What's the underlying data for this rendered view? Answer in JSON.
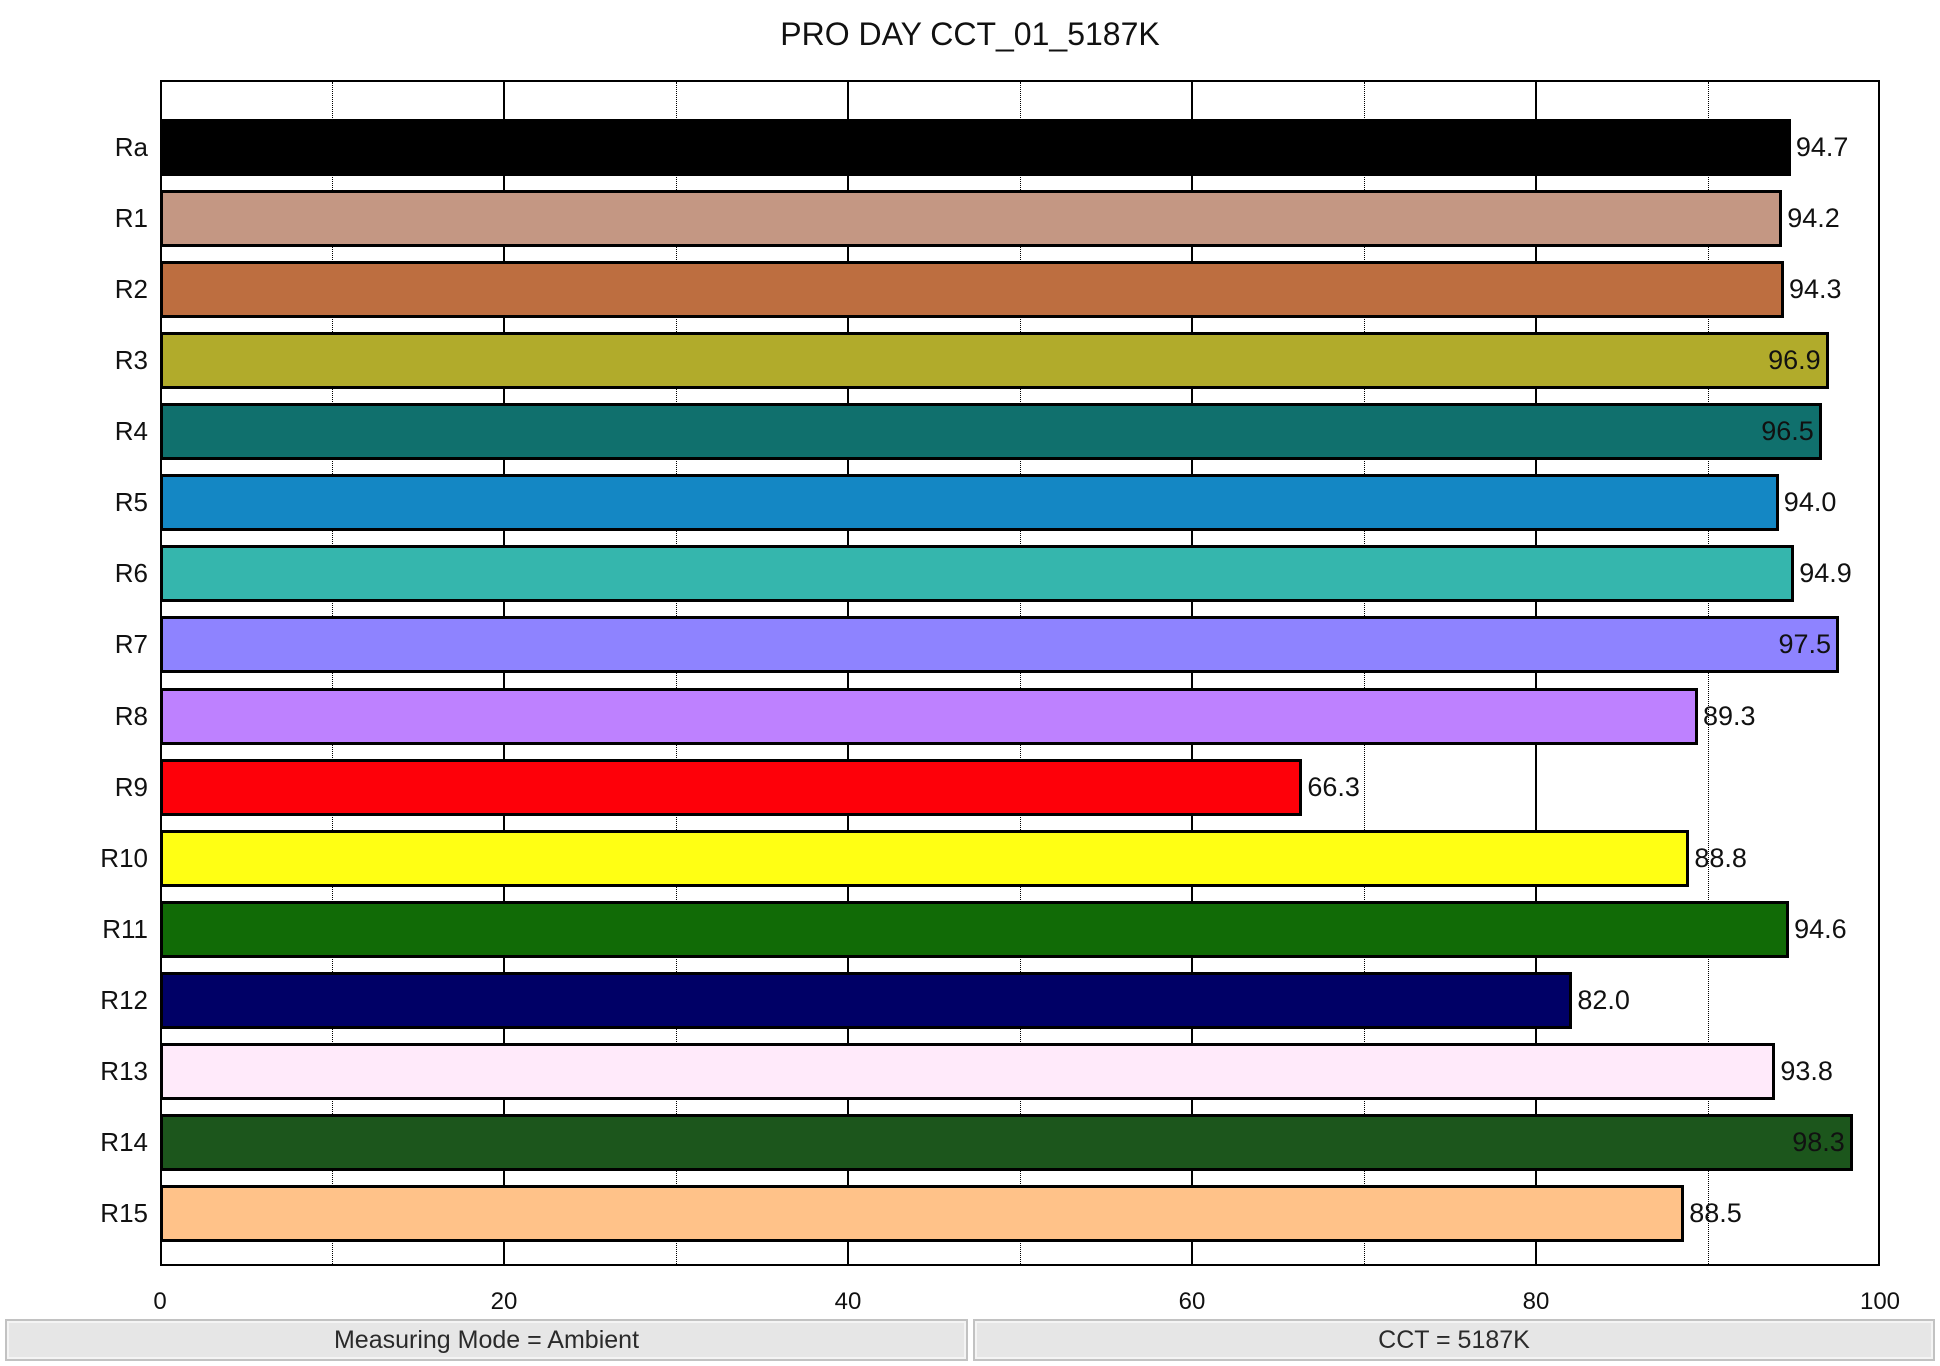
{
  "title": "PRO DAY CCT_01_5187K",
  "status": {
    "left": "Measuring Mode = Ambient",
    "right": "CCT = 5187K"
  },
  "axis": {
    "x_ticks": [
      "0",
      "20",
      "40",
      "60",
      "80",
      "100"
    ]
  },
  "chart_data": {
    "type": "bar",
    "orientation": "horizontal",
    "title": "PRO DAY CCT_01_5187K",
    "xlabel": "",
    "ylabel": "",
    "xlim": [
      0,
      100
    ],
    "x_ticks": [
      0,
      20,
      40,
      60,
      80,
      100
    ],
    "grid": {
      "major": [
        20,
        40,
        60,
        80
      ],
      "minor_dotted": [
        10,
        30,
        50,
        70,
        90
      ]
    },
    "legend": "none",
    "categories": [
      "Ra",
      "R1",
      "R2",
      "R3",
      "R4",
      "R5",
      "R6",
      "R7",
      "R8",
      "R9",
      "R10",
      "R11",
      "R12",
      "R13",
      "R14",
      "R15"
    ],
    "values": [
      94.7,
      94.2,
      94.3,
      96.9,
      96.5,
      94.0,
      94.9,
      97.5,
      89.3,
      66.3,
      88.8,
      94.6,
      82.0,
      93.8,
      98.3,
      88.5
    ],
    "value_labels": [
      "94.7",
      "94.2",
      "94.3",
      "96.9",
      "96.5",
      "94.0",
      "94.9",
      "97.5",
      "89.3",
      "66.3",
      "88.8",
      "94.6",
      "82.0",
      "93.8",
      "98.3",
      "88.5"
    ],
    "colors": [
      "#000000",
      "#C49783",
      "#BD6E40",
      "#B1AB2B",
      "#10706D",
      "#1487C4",
      "#35B6AD",
      "#8E83FF",
      "#BE81FF",
      "#FE0009",
      "#FFFF14",
      "#116B06",
      "#000066",
      "#FFEAFA",
      "#1C561C",
      "#FFC289"
    ],
    "annotations": [
      "Measuring Mode = Ambient",
      "CCT = 5187K"
    ]
  }
}
